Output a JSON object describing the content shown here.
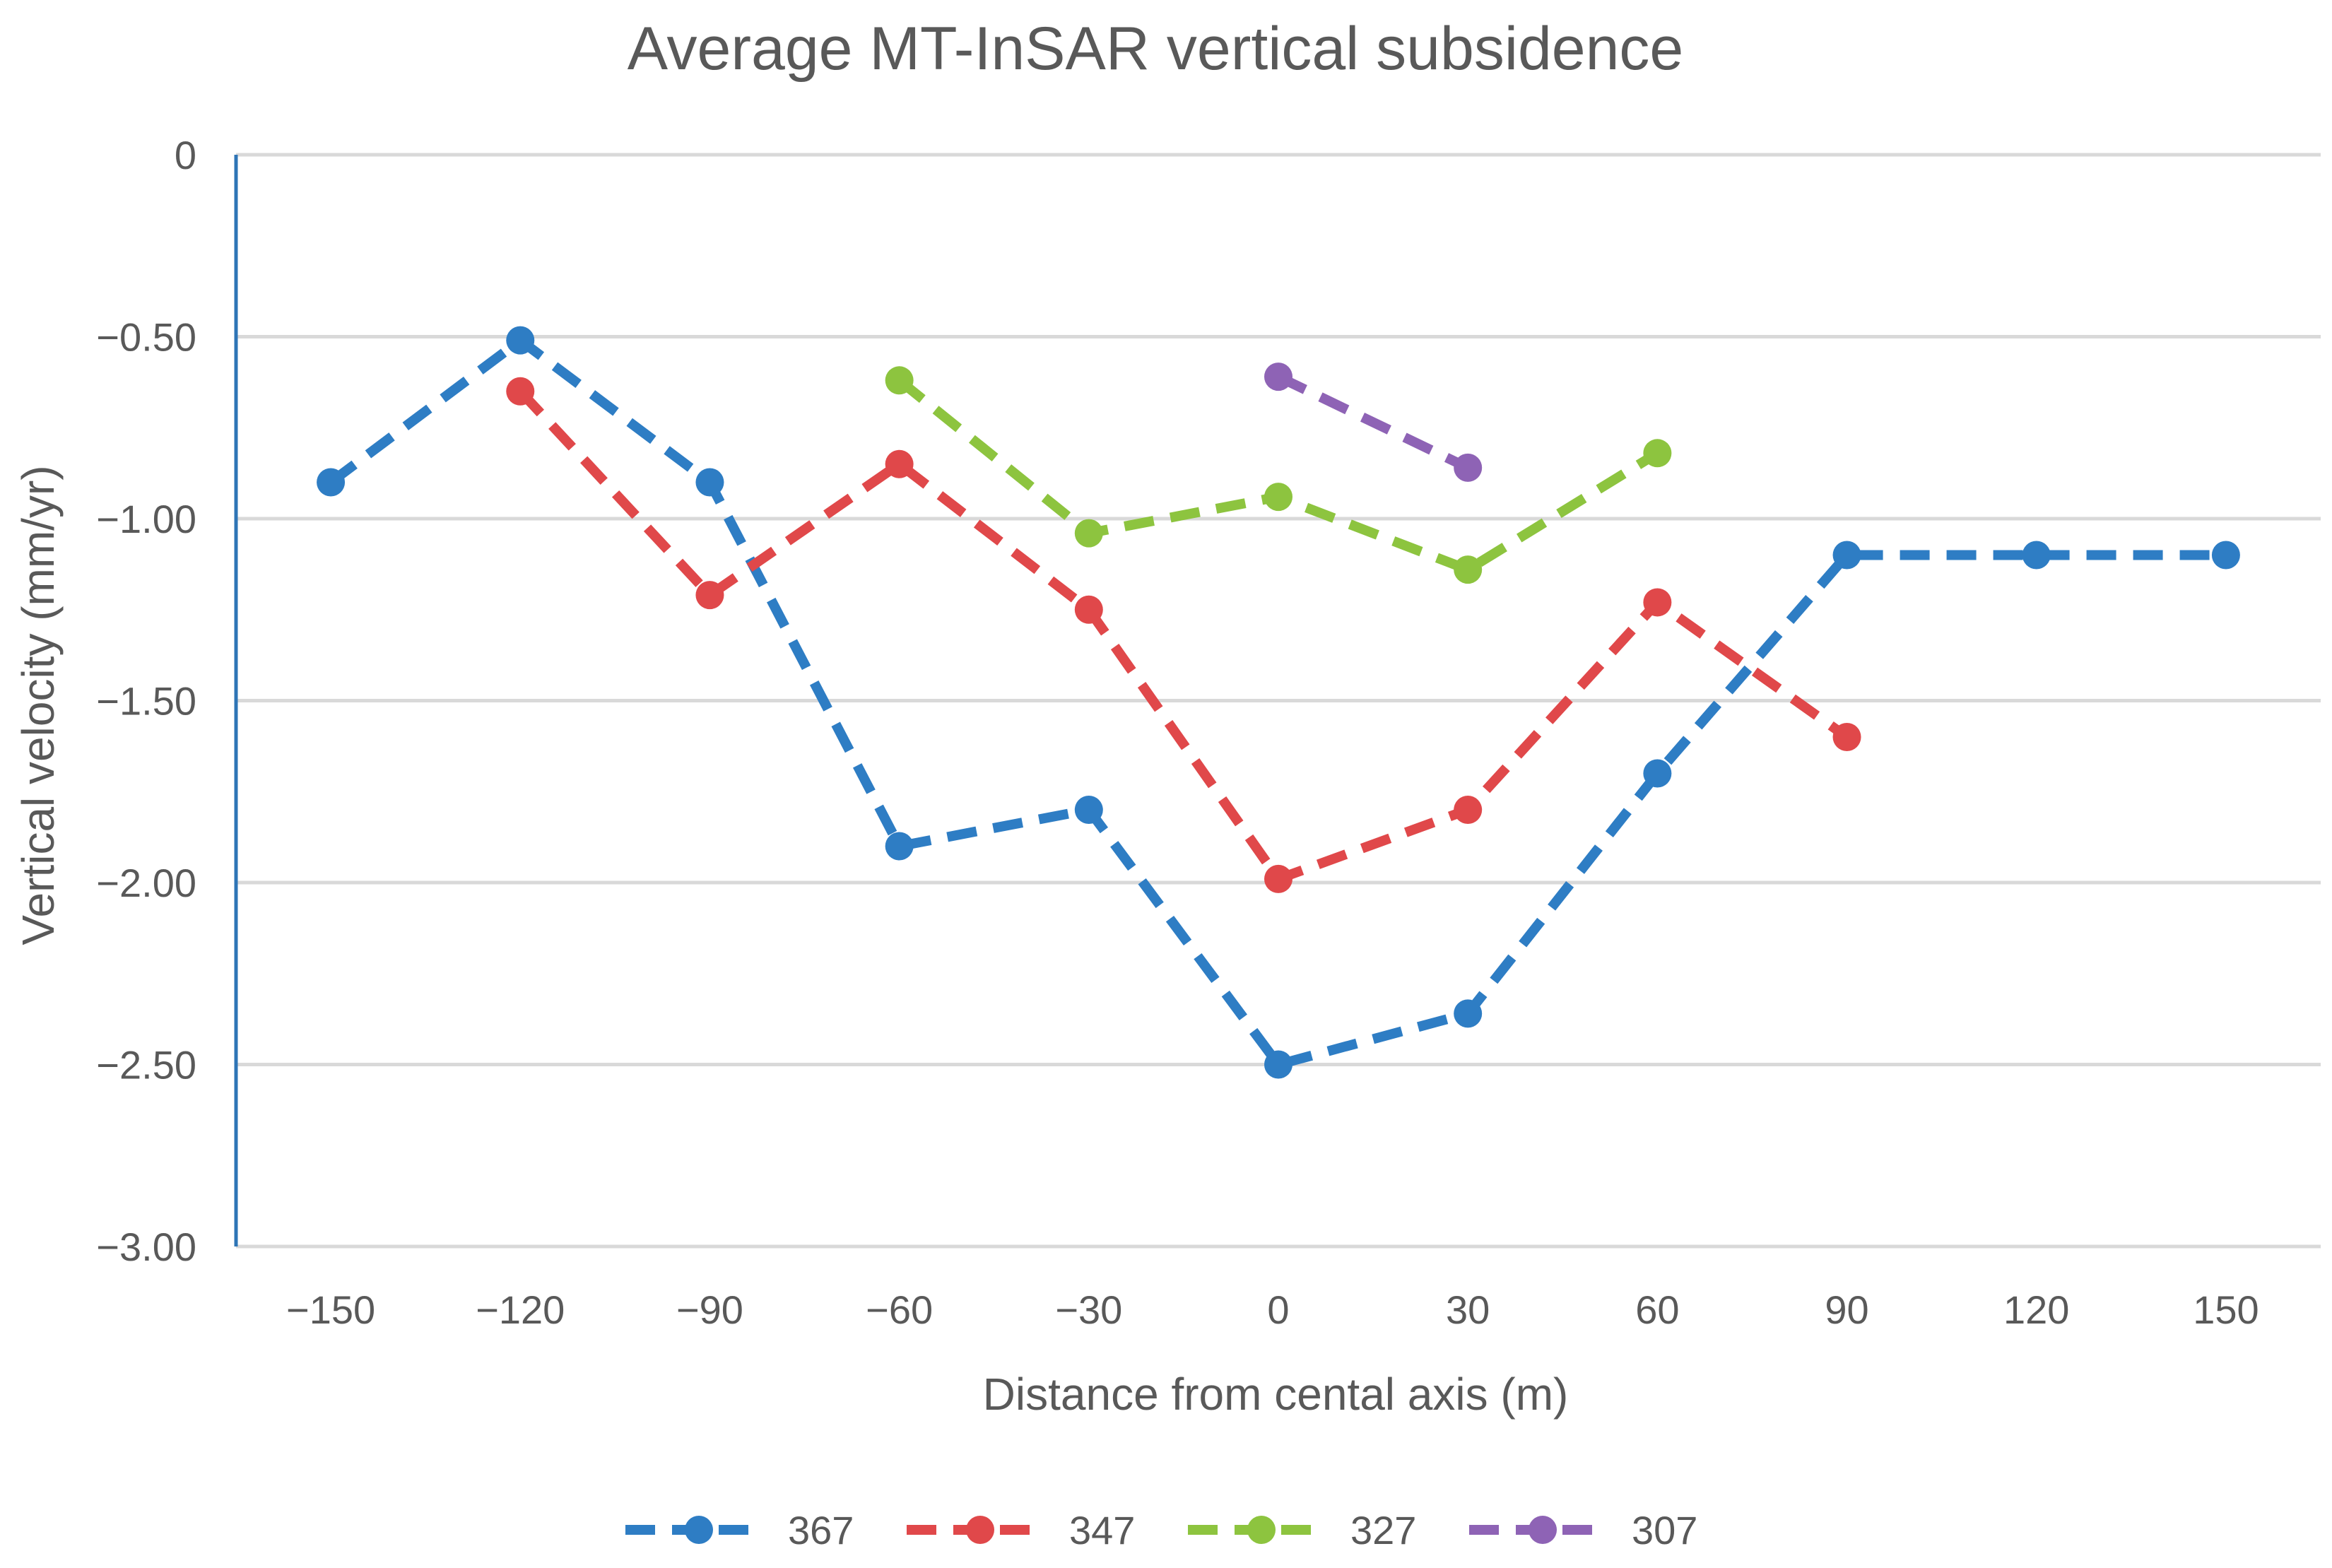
{
  "chart_data": {
    "type": "line",
    "title": "Average MT-InSAR vertical subsidence",
    "xlabel": "Distance from cental axis (m)",
    "ylabel": "Vertical velocity (mm/yr)",
    "x": [
      -150,
      -120,
      -90,
      -60,
      -30,
      0,
      30,
      60,
      90,
      120,
      150
    ],
    "x_tick_labels": [
      "−150",
      "−120",
      "−90",
      "−60",
      "−30",
      "0",
      "30",
      "60",
      "90",
      "120",
      "150"
    ],
    "y_ticks": [
      0,
      -0.5,
      -1.0,
      -1.5,
      -2.0,
      -2.5,
      -3.0
    ],
    "y_tick_labels": [
      "0",
      "−0.50",
      "−1.00",
      "−1.50",
      "−2.00",
      "−2.50",
      "−3.00"
    ],
    "xlim": [
      -165,
      165
    ],
    "ylim": [
      -3.0,
      0
    ],
    "grid": "horizontal",
    "legend_position": "bottom",
    "series": [
      {
        "name": "367",
        "color": "#2e7dc4",
        "x": [
          -150,
          -120,
          -90,
          -60,
          -30,
          0,
          30,
          60,
          90,
          120,
          150
        ],
        "y": [
          -0.9,
          -0.51,
          -0.9,
          -1.9,
          -1.8,
          -2.5,
          -2.36,
          -1.7,
          -1.1,
          -1.1,
          -1.1
        ]
      },
      {
        "name": "347",
        "color": "#e0484a",
        "x": [
          -120,
          -90,
          -60,
          -30,
          0,
          30,
          60,
          90
        ],
        "y": [
          -0.65,
          -1.21,
          -0.85,
          -1.25,
          -1.99,
          -1.8,
          -1.23,
          -1.6
        ]
      },
      {
        "name": "327",
        "color": "#8dc43f",
        "x": [
          -60,
          -30,
          0,
          30,
          60
        ],
        "y": [
          -0.62,
          -1.04,
          -0.94,
          -1.14,
          -0.82
        ]
      },
      {
        "name": "307",
        "color": "#8e63b5",
        "x": [
          0,
          30
        ],
        "y": [
          -0.61,
          -0.86
        ]
      }
    ]
  }
}
